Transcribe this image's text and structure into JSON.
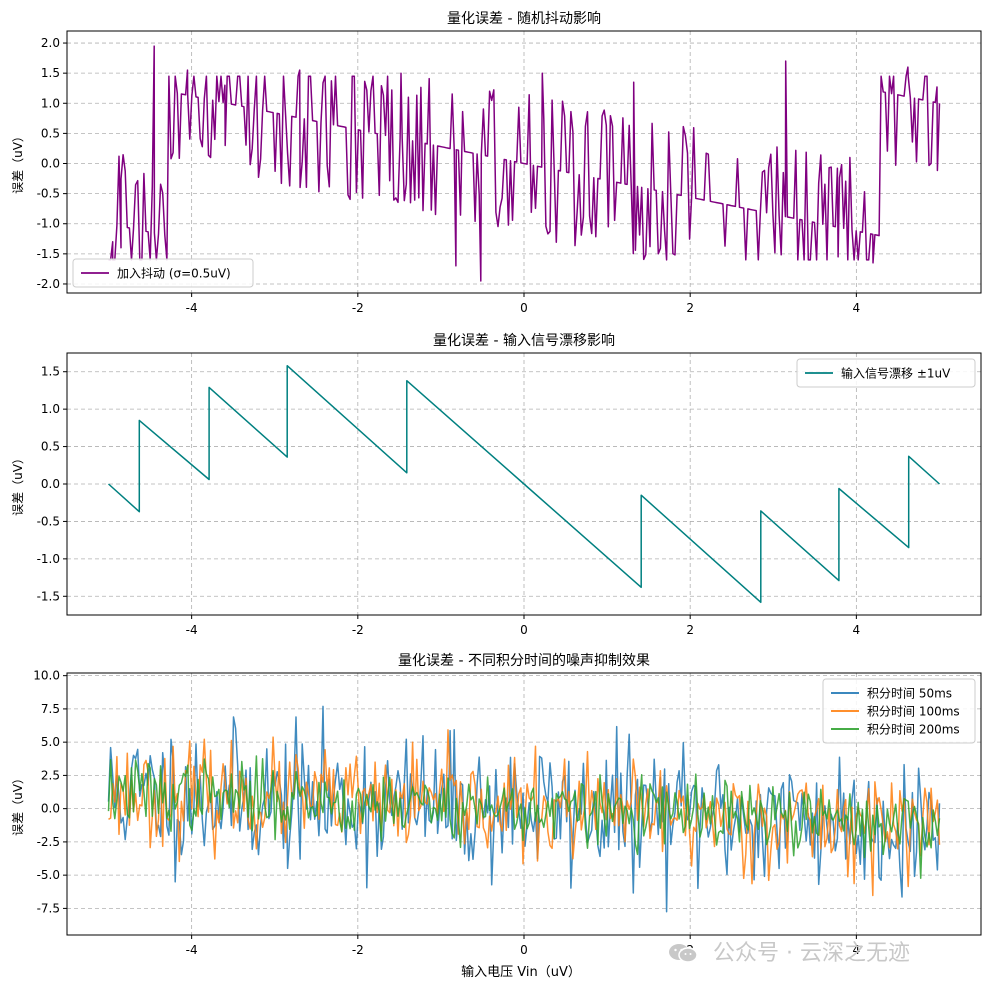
{
  "colors": {
    "dither": "#800080",
    "drift": "#008080",
    "t50": "#1f77b4",
    "t100": "#ff7f0e",
    "t200": "#2ca02c",
    "grid": "#b0b0b0"
  },
  "watermark": {
    "text": "公众号 · 云深之无迹",
    "icon": "wechat-icon"
  },
  "xaxis_label": "输入电压 Vin（uV）",
  "chart_data": [
    {
      "type": "line",
      "title": "量化误差 - 随机抖动影响",
      "xlabel": "",
      "ylabel": "误差（uV）",
      "xlim": [
        -5.5,
        5.5
      ],
      "ylim": [
        -2.15,
        2.2
      ],
      "xticks": [
        -4,
        -2,
        0,
        2,
        4
      ],
      "xtick_labels": [
        "-4",
        "-2",
        "0",
        "2",
        "4"
      ],
      "yticks": [
        -2.0,
        -1.5,
        -1.0,
        -0.5,
        0.0,
        0.5,
        1.0,
        1.5,
        2.0
      ],
      "ytick_labels": [
        "-2.0",
        "-1.5",
        "-1.0",
        "-0.5",
        "0.0",
        "0.5",
        "1.0",
        "1.5",
        "2.0"
      ],
      "grid": true,
      "legend": "bottom-left",
      "series": [
        {
          "name": "加入抖动 (σ=0.5uV)",
          "generator": "dither",
          "x_range": [
            -5,
            5
          ],
          "points": 400,
          "seed": 7,
          "quantization_step": 2.4,
          "sigma": 0.5,
          "sample_spikes": [
            [
              -4.45,
              1.95
            ],
            [
              -4.05,
              1.55
            ],
            [
              -3.6,
              1.3
            ],
            [
              -2.7,
              1.55
            ],
            [
              -1.48,
              1.5
            ],
            [
              -0.82,
              -1.7
            ],
            [
              -0.52,
              -1.95
            ],
            [
              0.22,
              1.5
            ],
            [
              1.32,
              1.35
            ],
            [
              3.15,
              1.7
            ],
            [
              4.62,
              1.6
            ],
            [
              4.97,
              1.27
            ],
            [
              -4.95,
              -1.3
            ],
            [
              -4.85,
              -1.4
            ],
            [
              3.78,
              -1.55
            ],
            [
              4.2,
              -1.65
            ]
          ]
        }
      ]
    },
    {
      "type": "line",
      "title": "量化误差 - 输入信号漂移影响",
      "xlabel": "",
      "ylabel": "误差（uV）",
      "xlim": [
        -5.5,
        5.5
      ],
      "ylim": [
        -1.75,
        1.75
      ],
      "xticks": [
        -4,
        -2,
        0,
        2,
        4
      ],
      "xtick_labels": [
        "-4",
        "-2",
        "0",
        "2",
        "4"
      ],
      "yticks": [
        -1.5,
        -1.0,
        -0.5,
        0.0,
        0.5,
        1.0,
        1.5
      ],
      "ytick_labels": [
        "-1.5",
        "-1.0",
        "-0.5",
        "0.0",
        "0.5",
        "1.0",
        "1.5"
      ],
      "grid": true,
      "legend": "top-right",
      "series": [
        {
          "name": "输入信号漂移 ±1uV",
          "x": [
            -5.0,
            -4.63,
            -4.63,
            -3.79,
            -3.79,
            -2.85,
            -2.85,
            -1.41,
            -1.41,
            0.0,
            1.41,
            1.41,
            2.85,
            2.85,
            3.79,
            3.79,
            4.63,
            4.63,
            5.0
          ],
          "y": [
            0.0,
            -0.37,
            0.85,
            0.06,
            1.29,
            0.36,
            1.58,
            0.15,
            1.38,
            0.0,
            -1.38,
            -0.15,
            -1.58,
            -0.36,
            -1.29,
            -0.06,
            -0.85,
            0.37,
            0.0
          ]
        }
      ]
    },
    {
      "type": "line",
      "title": "量化误差 - 不同积分时间的噪声抑制效果",
      "xlabel": "输入电压 Vin（uV）",
      "ylabel": "误差（uV）",
      "xlim": [
        -5.5,
        5.5
      ],
      "ylim": [
        -9.5,
        10.2
      ],
      "xticks": [
        -4,
        -2,
        0,
        2,
        4
      ],
      "xtick_labels": [
        "-4",
        "-2",
        "0",
        "2",
        "4"
      ],
      "yticks": [
        -7.5,
        -5.0,
        -2.5,
        0.0,
        2.5,
        5.0,
        7.5,
        10.0
      ],
      "ytick_labels": [
        "-7.5",
        "-5.0",
        "-2.5",
        "0.0",
        "2.5",
        "5.0",
        "7.5",
        "10.0"
      ],
      "grid": true,
      "legend": "top-right",
      "series": [
        {
          "name": "积分时间 50ms",
          "generator": "noise",
          "points": 400,
          "seed": 11,
          "amplitude": 2.6,
          "slope": -0.25
        },
        {
          "name": "积分时间 100ms",
          "generator": "noise",
          "points": 400,
          "seed": 23,
          "amplitude": 1.85,
          "slope": -0.25
        },
        {
          "name": "积分时间 200ms",
          "generator": "noise",
          "points": 400,
          "seed": 37,
          "amplitude": 1.3,
          "slope": -0.25
        }
      ]
    }
  ]
}
